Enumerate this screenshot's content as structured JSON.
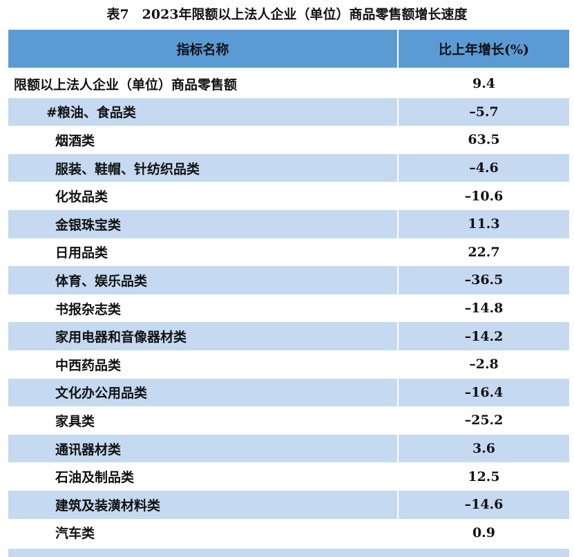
{
  "title": "表7　2023年限额以上法人企业（单位）商品零售额增长速度",
  "table": {
    "header": [
      "指标名称",
      "比上年增长(%)"
    ],
    "rows": [
      [
        "限额以上法人企业（单位）商品零售额",
        "9.4"
      ],
      [
        "#粮油、食品类",
        "–5.7"
      ],
      [
        "烟酒类",
        "63.5"
      ],
      [
        "服装、鞋帽、针纺织品类",
        "–4.6"
      ],
      [
        "化妆品类",
        "–10.6"
      ],
      [
        "金银珠宝类",
        "11.3"
      ],
      [
        "日用品类",
        "22.7"
      ],
      [
        "体育、娱乐品类",
        "–36.5"
      ],
      [
        "书报杂志类",
        "–14.8"
      ],
      [
        "家用电器和音像器材类",
        "–14.2"
      ],
      [
        "中西药品类",
        "–2.8"
      ],
      [
        "文化办公用品类",
        "–16.4"
      ],
      [
        "家具类",
        "–25.2"
      ],
      [
        "通讯器材类",
        "3.6"
      ],
      [
        "石油及制品类",
        "12.5"
      ],
      [
        "建筑及装潢材料类",
        "–14.6"
      ],
      [
        "汽车类",
        "0.9"
      ]
    ]
  }
}
